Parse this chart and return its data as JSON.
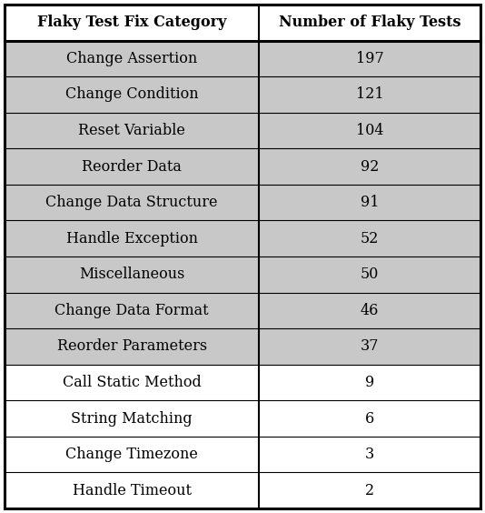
{
  "categories": [
    "Change Assertion",
    "Change Condition",
    "Reset Variable",
    "Reorder Data",
    "Change Data Structure",
    "Handle Exception",
    "Miscellaneous",
    "Change Data Format",
    "Reorder Parameters",
    "Call Static Method",
    "String Matching",
    "Change Timezone",
    "Handle Timeout"
  ],
  "values": [
    197,
    121,
    104,
    92,
    91,
    52,
    50,
    46,
    37,
    9,
    6,
    3,
    2
  ],
  "col1_header": "Flaky Test Fix Category",
  "col2_header": "Number of Flaky Tests",
  "shaded_count": 9,
  "shaded_color": "#c8c8c8",
  "white_color": "#ffffff",
  "border_color": "#000000",
  "font_size": 11.5,
  "header_font_size": 11.5,
  "col_split": 0.535
}
